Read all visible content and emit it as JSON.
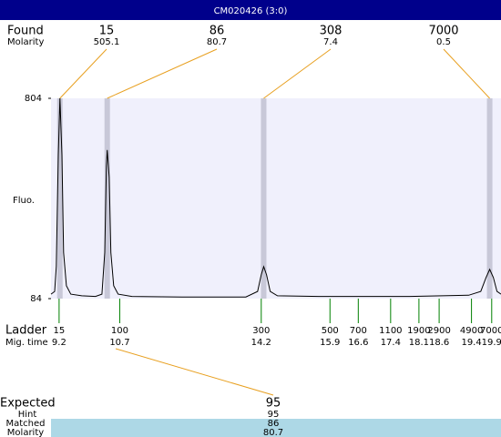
{
  "chart_data": {
    "type": "line",
    "title": "CM020426 (3:0)",
    "y_label": "Fluo.",
    "ylim": [
      84,
      804
    ],
    "yticks": [
      84,
      804
    ],
    "xlim": [
      9.0,
      20.13
    ],
    "color": "#000000",
    "x": [
      9.0,
      9.09,
      9.13,
      9.18,
      9.22,
      9.27,
      9.31,
      9.38,
      9.49,
      9.76,
      10.1,
      10.26,
      10.33,
      10.37,
      10.39,
      10.44,
      10.48,
      10.55,
      10.66,
      11.0,
      12.24,
      13.82,
      14.11,
      14.2,
      14.26,
      14.33,
      14.42,
      14.6,
      15.62,
      17.87,
      19.33,
      19.63,
      19.76,
      19.85,
      19.94,
      20.03,
      20.13
    ],
    "values": [
      100,
      110,
      200,
      600,
      804,
      600,
      250,
      130,
      100,
      94,
      92,
      100,
      250,
      560,
      618,
      520,
      250,
      130,
      100,
      92,
      90,
      90,
      110,
      170,
      199,
      170,
      110,
      94,
      92,
      92,
      96,
      110,
      160,
      189,
      160,
      110,
      100
    ],
    "found": {
      "label": "Found",
      "sublabel": "Molarity",
      "sizes": [
        15,
        86,
        308,
        7000
      ],
      "molarity": [
        505.1,
        80.7,
        7.4,
        0.5
      ],
      "peaks": [
        9.22,
        10.39,
        14.26,
        19.85
      ]
    },
    "ladder": {
      "label": "Ladder",
      "time_label": "Mig. time",
      "sizes": [
        15,
        100,
        300,
        500,
        700,
        1100,
        1900,
        2900,
        4900,
        7000
      ],
      "times": [
        9.2,
        10.7,
        14.2,
        15.9,
        16.6,
        17.4,
        18.1,
        18.6,
        19.4,
        19.9
      ]
    },
    "expected": {
      "label": "Expected",
      "value": 95,
      "hint_label": "Hint",
      "hint": 95,
      "matched_label": "Matched",
      "matched": 86,
      "molarity_label": "Molarity",
      "molarity": 80.7
    }
  }
}
